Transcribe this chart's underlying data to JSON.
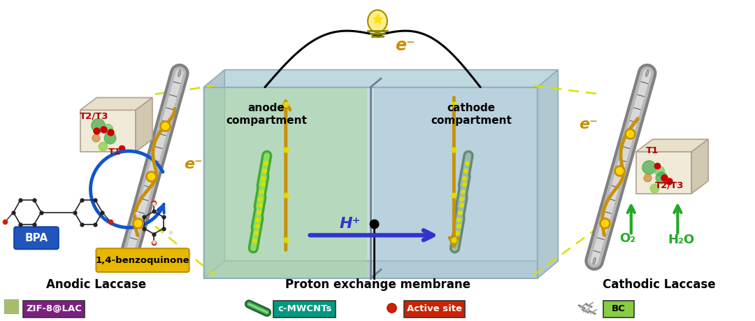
{
  "bg_color": "#ffffff",
  "section_labels": {
    "anodic": "Anodic Laccase",
    "center": "Proton exchange membrane",
    "cathodic": "Cathodic Laccase"
  },
  "box_anode_color": "#c8e8c0",
  "box_cathode_color": "#c0d8e8",
  "box_outer_color": "#b0ccd4",
  "box_wall_color": "#d0e4ec",
  "zif_face_color": "#f0ead8",
  "zif_top_color": "#e8e0c8",
  "zif_right_color": "#d8d0b8",
  "nanotube_outer": "#909090",
  "nanotube_inner": "#c8c8c8",
  "nanotube_mesh": "#606060",
  "gold_color": "#DAA520",
  "gold_light": "#FFD700",
  "blue_arrow": "#1E6FCC",
  "green_arrow": "#22AA22",
  "purple_arrow": "#5533CC",
  "dashed_color": "#DDDD00",
  "t1_t2_color": "#AA0000",
  "wire_color": "#111111",
  "bpa_label_color": "#1155AA",
  "bq_bg_color": "#E8C020",
  "legend_zif_color": "#7B2080",
  "legend_cnt_color": "#009980",
  "legend_active_color": "#CC2200",
  "legend_bc_color": "#88CC44"
}
